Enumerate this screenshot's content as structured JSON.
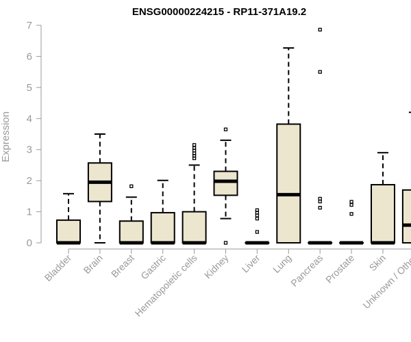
{
  "chart_data": {
    "type": "boxplot",
    "title": "ENSG00000224215 - RP11-371A19.2",
    "xlabel": "",
    "ylabel": "Expression",
    "ylim": [
      0,
      7
    ],
    "yticks": [
      0,
      1,
      2,
      3,
      4,
      5,
      6,
      7
    ],
    "grid": false,
    "box_fill": "#EDE6CF",
    "axis_color": "#999999",
    "categories": [
      "Bladder",
      "Brain",
      "Breast",
      "Gastric",
      "Hematopoietic cells",
      "Kidney",
      "Liver",
      "Lung",
      "Pancreas",
      "Prostate",
      "Skin",
      "Unknown / Other"
    ],
    "boxes": [
      {
        "category": "Bladder",
        "q1": 0,
        "median": 0,
        "q3": 0.73,
        "whisker_low": 0,
        "whisker_high": 1.58,
        "outliers": []
      },
      {
        "category": "Brain",
        "q1": 1.33,
        "median": 1.95,
        "q3": 2.57,
        "whisker_low": 0,
        "whisker_high": 3.5,
        "outliers": []
      },
      {
        "category": "Breast",
        "q1": 0,
        "median": 0,
        "q3": 0.7,
        "whisker_low": 0,
        "whisker_high": 1.47,
        "outliers": [
          1.82
        ]
      },
      {
        "category": "Gastric",
        "q1": 0,
        "median": 0,
        "q3": 0.97,
        "whisker_low": 0,
        "whisker_high": 2.01,
        "outliers": []
      },
      {
        "category": "Hematopoietic cells",
        "q1": 0,
        "median": 0,
        "q3": 1.0,
        "whisker_low": 0,
        "whisker_high": 2.5,
        "outliers": [
          2.72,
          2.8,
          2.88,
          2.97,
          3.05,
          3.15
        ]
      },
      {
        "category": "Kidney",
        "q1": 1.53,
        "median": 1.98,
        "q3": 2.3,
        "whisker_low": 0.78,
        "whisker_high": 3.3,
        "outliers": [
          0,
          3.65
        ]
      },
      {
        "category": "Liver",
        "q1": 0,
        "median": 0,
        "q3": 0,
        "whisker_low": 0,
        "whisker_high": 0,
        "outliers": [
          0.35,
          0.78,
          0.88,
          0.97,
          1.05
        ]
      },
      {
        "category": "Lung",
        "q1": 0,
        "median": 1.55,
        "q3": 3.82,
        "whisker_low": 0,
        "whisker_high": 6.27,
        "outliers": []
      },
      {
        "category": "Pancreas",
        "q1": 0,
        "median": 0,
        "q3": 0,
        "whisker_low": 0,
        "whisker_high": 0,
        "outliers": [
          1.13,
          1.33,
          1.42,
          5.5,
          6.86
        ]
      },
      {
        "category": "Prostate",
        "q1": 0,
        "median": 0,
        "q3": 0,
        "whisker_low": 0,
        "whisker_high": 0,
        "outliers": [
          0.93,
          1.22,
          1.32
        ]
      },
      {
        "category": "Skin",
        "q1": 0,
        "median": 0,
        "q3": 1.87,
        "whisker_low": 0,
        "whisker_high": 2.9,
        "outliers": []
      },
      {
        "category": "Unknown / Other",
        "q1": 0,
        "median": 0.57,
        "q3": 1.7,
        "whisker_low": 0,
        "whisker_high": 4.2,
        "outliers": []
      }
    ]
  }
}
